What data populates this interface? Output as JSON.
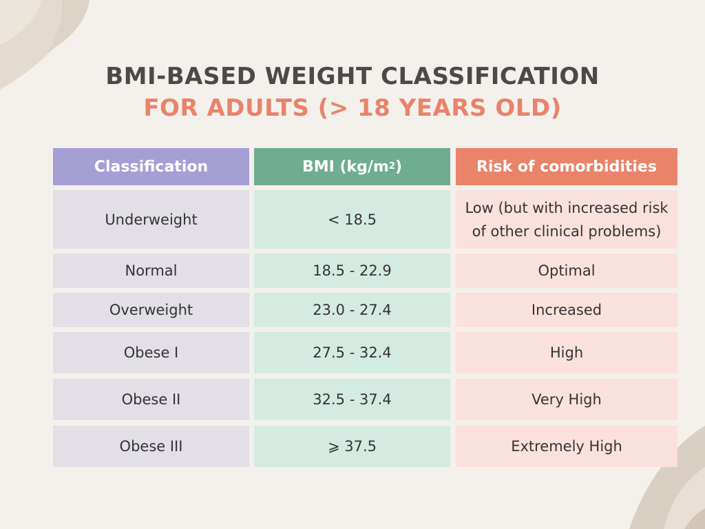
{
  "title": {
    "line1": "BMI-BASED WEIGHT CLASSIFICATION",
    "line2": "FOR ADULTS (> 18 YEARS OLD)"
  },
  "table": {
    "headers": {
      "classification": "Classification",
      "bmi": "BMI (kg/m",
      "bmi_sup": "2",
      "bmi_close": ")",
      "risk": "Risk of comorbidities"
    },
    "rows": [
      {
        "classification": "Underweight",
        "bmi": "< 18.5",
        "risk": "Low (but with increased risk of other clinical problems)"
      },
      {
        "classification": "Normal",
        "bmi": "18.5 - 22.9",
        "risk": "Optimal"
      },
      {
        "classification": "Overweight",
        "bmi": "23.0 - 27.4",
        "risk": "Increased"
      },
      {
        "classification": "Obese I",
        "bmi": "27.5 - 32.4",
        "risk": "High"
      },
      {
        "classification": "Obese II",
        "bmi": "32.5 - 37.4",
        "risk": "Very High"
      },
      {
        "classification": "Obese III",
        "bmi": "⩾ 37.5",
        "risk": "Extremely High"
      }
    ]
  },
  "colors": {
    "background": "#f4f1ec",
    "title_dark": "#4a4a4a",
    "title_accent": "#e9836a",
    "header_classification": "#a59fd4",
    "header_bmi": "#6fac92",
    "header_risk": "#e9836a",
    "cell_classification": "#e2dfe6",
    "cell_bmi": "#d4ebe2",
    "cell_risk": "#fbe1de"
  }
}
